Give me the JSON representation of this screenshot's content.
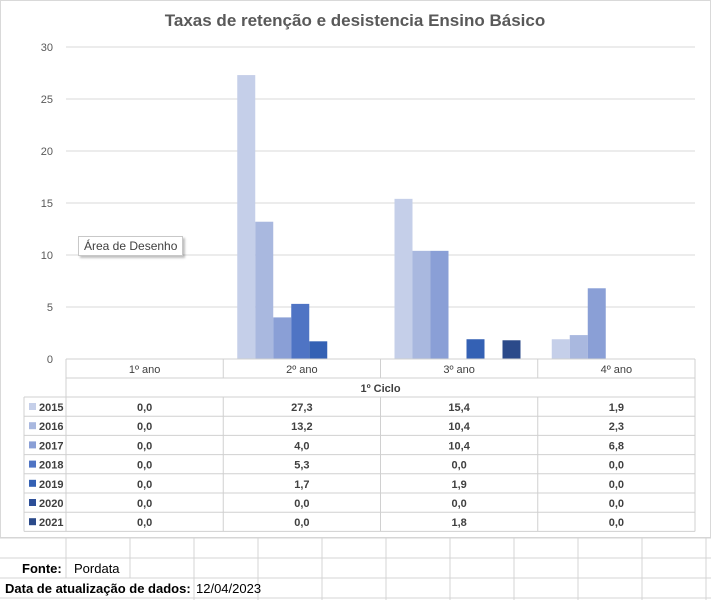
{
  "chart_data": {
    "type": "bar",
    "title": "Taxas de retenção e desistencia Ensino Básico",
    "group_label": "1º Ciclo",
    "categories": [
      "1º ano",
      "2º ano",
      "3º ano",
      "4º ano"
    ],
    "ylim": [
      0,
      30
    ],
    "yticks": [
      "0",
      "5",
      "10",
      "15",
      "20",
      "25",
      "30"
    ],
    "grid": true,
    "legend_placement": "data-table",
    "series": [
      {
        "name": "2015",
        "color": "#c5cfe9",
        "values": [
          0.0,
          27.3,
          15.4,
          1.9
        ],
        "labels": [
          "0,0",
          "27,3",
          "15,4",
          "1,9"
        ]
      },
      {
        "name": "2016",
        "color": "#a9b8df",
        "values": [
          0.0,
          13.2,
          10.4,
          2.3
        ],
        "labels": [
          "0,0",
          "13,2",
          "10,4",
          "2,3"
        ]
      },
      {
        "name": "2017",
        "color": "#8a9fd6",
        "values": [
          0.0,
          4.0,
          10.4,
          6.8
        ],
        "labels": [
          "0,0",
          "4,0",
          "10,4",
          "6,8"
        ]
      },
      {
        "name": "2018",
        "color": "#4f74c4",
        "values": [
          0.0,
          5.3,
          0.0,
          0.0
        ],
        "labels": [
          "0,0",
          "5,3",
          "0,0",
          "0,0"
        ]
      },
      {
        "name": "2019",
        "color": "#3461b4",
        "values": [
          0.0,
          1.7,
          1.9,
          0.0
        ],
        "labels": [
          "0,0",
          "1,7",
          "1,9",
          "0,0"
        ]
      },
      {
        "name": "2020",
        "color": "#2d4f98",
        "values": [
          0.0,
          0.0,
          0.0,
          0.0
        ],
        "labels": [
          "0,0",
          "0,0",
          "0,0",
          "0,0"
        ]
      },
      {
        "name": "2021",
        "color": "#2b4a8a",
        "values": [
          0.0,
          0.0,
          1.8,
          0.0
        ],
        "labels": [
          "0,0",
          "0,0",
          "1,8",
          "0,0"
        ]
      }
    ]
  },
  "tooltip": "Área de Desenho",
  "footer": {
    "source_label": "Fonte:",
    "source_value": "Pordata",
    "date_label": "Data de atualização de dados:",
    "date_value": "12/04/2023"
  }
}
